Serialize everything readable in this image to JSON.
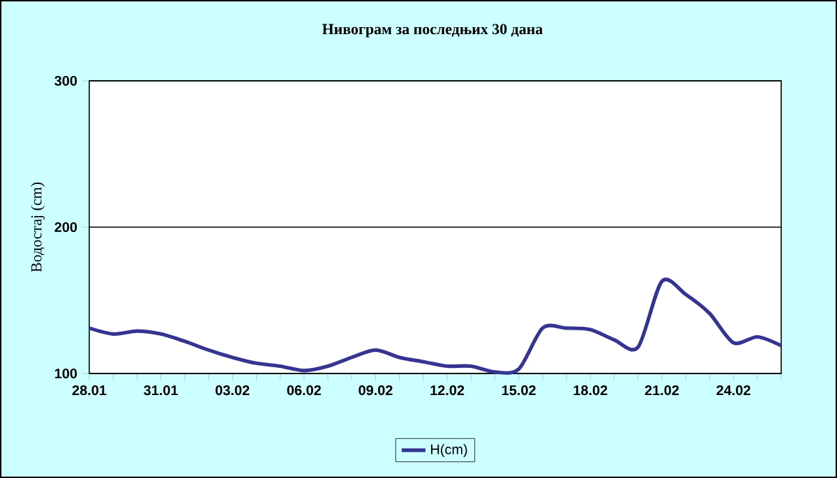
{
  "chart_data": {
    "type": "line",
    "title": "Нивограм за последњих 30 дана",
    "ylabel": "Водостај (cm)",
    "categories": [
      "28.01",
      null,
      null,
      "31.01",
      null,
      null,
      "03.02",
      null,
      null,
      "06.02",
      null,
      null,
      "09.02",
      null,
      null,
      "12.02",
      null,
      null,
      "15.02",
      null,
      null,
      "18.02",
      null,
      null,
      "21.02",
      null,
      null,
      "24.02",
      null,
      null
    ],
    "series": [
      {
        "name": "H(cm)",
        "color": "#333399",
        "values": [
          131,
          127,
          129,
          127,
          122,
          116,
          111,
          107,
          105,
          102,
          105,
          111,
          116,
          111,
          108,
          105,
          105,
          101,
          103,
          131,
          131,
          130,
          123,
          118,
          163,
          154,
          141,
          121,
          125,
          119
        ]
      }
    ],
    "ylim": [
      100,
      300
    ],
    "yticks": [
      100,
      200,
      300
    ],
    "grid": "y",
    "legend": "bottom"
  }
}
